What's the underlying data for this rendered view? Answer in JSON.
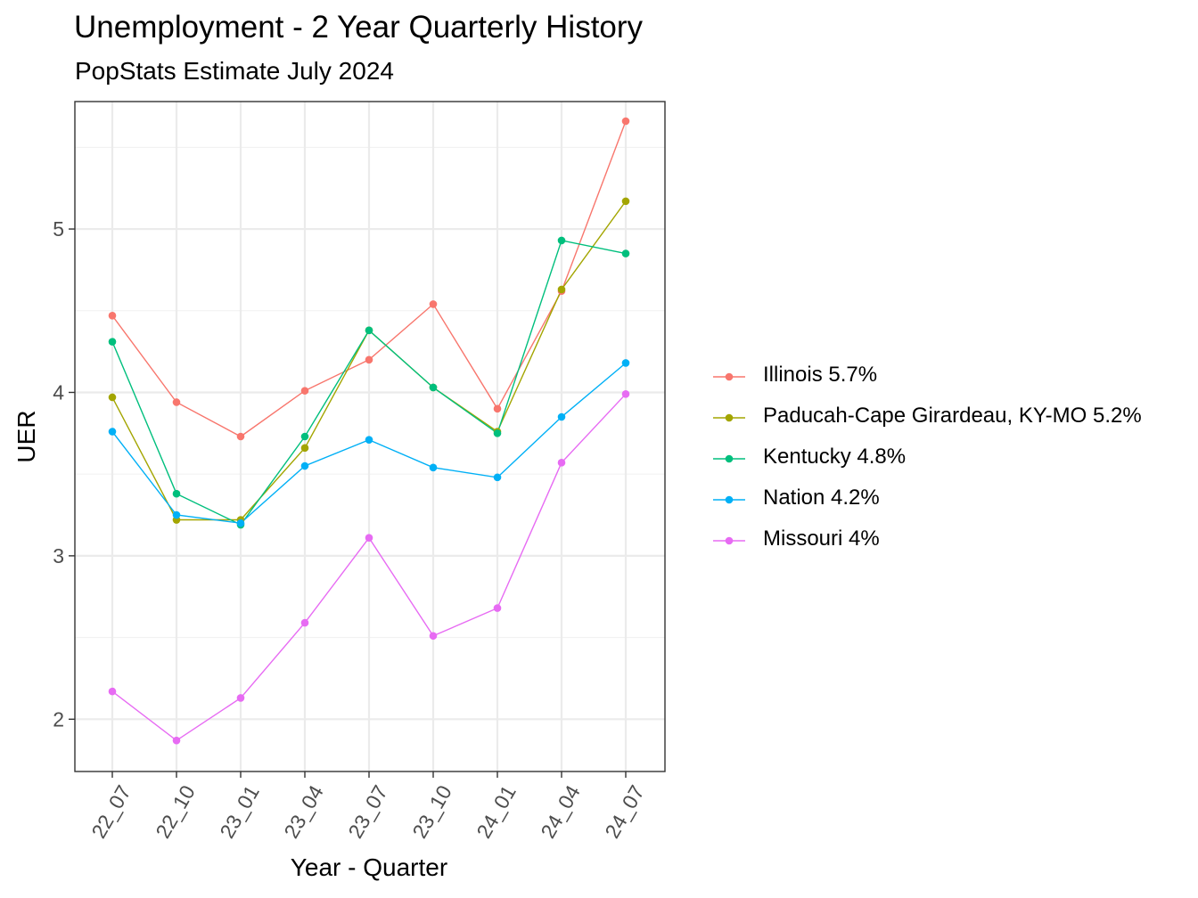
{
  "chart_data": {
    "type": "line",
    "title": "Unemployment - 2 Year Quarterly History",
    "subtitle": "PopStats Estimate July 2024",
    "xlabel": "Year - Quarter",
    "ylabel": "UER",
    "categories": [
      "22_07",
      "22_10",
      "23_01",
      "23_04",
      "23_07",
      "23_10",
      "24_01",
      "24_04",
      "24_07"
    ],
    "yticks": [
      2,
      3,
      4,
      5
    ],
    "ylim": [
      1.68,
      5.78
    ],
    "grid": true,
    "legend_position": "right",
    "series": [
      {
        "name": "Illinois 5.7%",
        "color": "#F8766D",
        "values": [
          4.47,
          3.94,
          3.73,
          4.01,
          4.2,
          4.54,
          3.9,
          4.62,
          5.66
        ]
      },
      {
        "name": "Paducah-Cape Girardeau, KY-MO 5.2%",
        "color": "#A3A500",
        "values": [
          3.97,
          3.22,
          3.22,
          3.66,
          4.38,
          4.03,
          3.76,
          4.63,
          5.17
        ]
      },
      {
        "name": "Kentucky 4.8%",
        "color": "#00BF7D",
        "values": [
          4.31,
          3.38,
          3.19,
          3.73,
          4.38,
          4.03,
          3.75,
          4.93,
          4.85
        ]
      },
      {
        "name": "Nation 4.2%",
        "color": "#00B0F6",
        "values": [
          3.76,
          3.25,
          3.2,
          3.55,
          3.71,
          3.54,
          3.48,
          3.85,
          4.18
        ]
      },
      {
        "name": "Missouri 4%",
        "color": "#E76BF3",
        "values": [
          2.17,
          1.87,
          2.13,
          2.59,
          3.11,
          2.51,
          2.68,
          3.57,
          3.99
        ]
      }
    ]
  }
}
